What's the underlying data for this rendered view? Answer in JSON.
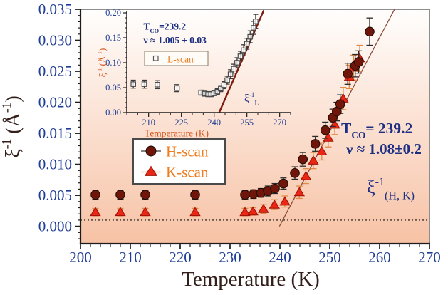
{
  "colors": {
    "page_bg": "#ffffff",
    "plot_gradient_top": "#fffefd",
    "plot_gradient_bottom": "#f7c2a5",
    "frame": "#8e8e8e",
    "axis": "#1c1c1c",
    "tick_label": "#1e3d96",
    "axis_title": "#33201a",
    "annotation": "#1d2f82",
    "legend_text": "#ee7d1f",
    "legend_border": "#4a4a4a",
    "inset_axis_title": "#d8571f",
    "h_fill": "#701509",
    "h_edge": "#1c0a04",
    "h_err": "#2b2b2b",
    "k_fill": "#ea2615",
    "k_edge": "#9c1004",
    "k_err": "#e08a45",
    "l_edge": "#4a4a4a",
    "l_err": "#3a3a3a",
    "fit_main": "#8a4a38",
    "fit_inset": "#7c1b0e",
    "dotted_line": "#111111"
  },
  "chart_data": {
    "type": "scatter",
    "title": "",
    "xlabel": "Temperature (K)",
    "ylabel": "ξ⁻¹ (Å⁻¹)",
    "ylabel_parts": [
      [
        "n",
        "ξ"
      ],
      [
        "sup",
        "-1"
      ],
      [
        "n",
        " (Å"
      ],
      [
        "sup",
        "-1"
      ],
      [
        "n",
        ")"
      ]
    ],
    "xlim": [
      200,
      270
    ],
    "ylim": [
      -0.0028,
      0.035
    ],
    "x_ticks": [
      200,
      210,
      220,
      230,
      240,
      250,
      260,
      270
    ],
    "x_tick_labels": [
      "200",
      "210",
      "220",
      "230",
      "240",
      "250",
      "260",
      "270"
    ],
    "x_minor_step": 2,
    "y_ticks": [
      0,
      0.005,
      0.01,
      0.015,
      0.02,
      0.025,
      0.03,
      0.035
    ],
    "y_tick_labels": [
      "0.000",
      "0.005",
      "0.010",
      "0.015",
      "0.020",
      "0.025",
      "0.030",
      "0.035"
    ],
    "y_minor_step": 0.001,
    "grid": false,
    "legend_position": "center-left",
    "resolution_line_y": 0.001,
    "fit_line": {
      "x": [
        239.9,
        263.0
      ],
      "y": [
        0.0,
        0.035
      ]
    },
    "series": [
      {
        "name": "H-scan",
        "marker": "circle",
        "data": [
          [
            203,
            0.0051,
            0.0007
          ],
          [
            208,
            0.0051,
            0.0007
          ],
          [
            213,
            0.0051,
            0.0007
          ],
          [
            223,
            0.0051,
            0.0007
          ],
          [
            233,
            0.0051,
            0.0007
          ],
          [
            234.7,
            0.0052,
            0.0007
          ],
          [
            236.2,
            0.0054,
            0.0007
          ],
          [
            237.6,
            0.0057,
            0.0008
          ],
          [
            239,
            0.0061,
            0.0008
          ],
          [
            240.7,
            0.0069,
            0.0009
          ],
          [
            243,
            0.0086,
            0.001
          ],
          [
            244.6,
            0.0108,
            0.0011
          ],
          [
            247.1,
            0.0133,
            0.0012
          ],
          [
            249.1,
            0.0155,
            0.0013
          ],
          [
            250.6,
            0.0175,
            0.0014
          ],
          [
            251.4,
            0.0185,
            0.0015
          ],
          [
            252.1,
            0.0197,
            0.0015
          ],
          [
            253.6,
            0.0246,
            0.0017
          ],
          [
            255.1,
            0.0259,
            0.0018
          ],
          [
            255.8,
            0.0265,
            0.0018
          ],
          [
            258,
            0.0314,
            0.0022
          ]
        ]
      },
      {
        "name": "K-scan",
        "marker": "triangle",
        "data": [
          [
            203,
            0.0023,
            0.0006
          ],
          [
            208,
            0.0023,
            0.0006
          ],
          [
            213,
            0.0023,
            0.0006
          ],
          [
            223,
            0.0023,
            0.0006
          ],
          [
            233,
            0.0023,
            0.0006
          ],
          [
            234.6,
            0.0024,
            0.0006
          ],
          [
            236.7,
            0.0028,
            0.0007
          ],
          [
            238.9,
            0.0035,
            0.0008
          ],
          [
            241,
            0.004,
            0.0009
          ],
          [
            243.9,
            0.0055,
            0.001
          ],
          [
            245.2,
            0.0081,
            0.0012
          ],
          [
            246.7,
            0.0106,
            0.0013
          ],
          [
            248.4,
            0.0121,
            0.0014
          ],
          [
            249.7,
            0.0143,
            0.0015
          ],
          [
            251,
            0.0164,
            0.0016
          ],
          [
            252.7,
            0.0206,
            0.0018
          ],
          [
            253.9,
            0.0241,
            0.0019
          ],
          [
            254.8,
            0.0256,
            0.002
          ],
          [
            256,
            0.0271,
            0.0021
          ]
        ]
      }
    ],
    "legend": {
      "items": [
        "H-scan",
        "K-scan"
      ]
    },
    "annotations": [
      {
        "id": "tco-main",
        "parts": [
          [
            "n",
            "T"
          ],
          [
            "sub",
            "CO"
          ],
          [
            "n",
            "= 239.2"
          ]
        ]
      },
      {
        "id": "nu-main",
        "parts": [
          [
            "n",
            "ν ≈ 1.08±0.2"
          ]
        ]
      },
      {
        "id": "xi-hk",
        "parts": [
          [
            "n",
            "ξ"
          ],
          [
            "sup",
            "-1"
          ],
          [
            "sub",
            "(H, K)"
          ]
        ]
      }
    ],
    "inset": {
      "type": "scatter",
      "xlabel": "Temperature (K)",
      "ylabel": "ξ⁻¹ (Å⁻¹)",
      "ylabel_parts": [
        [
          "n",
          "ξ"
        ],
        [
          "sup",
          "-1"
        ],
        [
          "n",
          " (Å"
        ],
        [
          "sup",
          "-1"
        ],
        [
          "n",
          ")"
        ]
      ],
      "xlim": [
        200,
        275
      ],
      "ylim": [
        0,
        0.2
      ],
      "x_ticks": [
        210,
        225,
        240,
        255,
        270
      ],
      "x_tick_labels": [
        "210",
        "225",
        "240",
        "255",
        "270"
      ],
      "x_minor_step": 5,
      "y_ticks": [
        0,
        0.05,
        0.1,
        0.15,
        0.2
      ],
      "y_tick_labels": [
        "0.00",
        "0.05",
        "0.10",
        "0.15",
        "0.20"
      ],
      "y_minor_step": 0.01,
      "fit_line": {
        "x": [
          242.3,
          262.7
        ],
        "y": [
          0.0,
          0.205
        ]
      },
      "series": [
        {
          "name": "L-scan",
          "marker": "open-square",
          "data": [
            [
              203,
              0.057,
              0.008
            ],
            [
              208,
              0.057,
              0.008
            ],
            [
              214,
              0.056,
              0.008
            ],
            [
              223,
              0.049,
              0.007
            ],
            [
              234,
              0.04,
              0.005
            ],
            [
              235.7,
              0.038,
              0.005
            ],
            [
              237.2,
              0.037,
              0.005
            ],
            [
              238.6,
              0.037,
              0.005
            ],
            [
              240,
              0.039,
              0.005
            ],
            [
              241.5,
              0.042,
              0.006
            ],
            [
              243,
              0.048,
              0.006
            ],
            [
              244.5,
              0.055,
              0.007
            ],
            [
              246,
              0.065,
              0.008
            ],
            [
              247.5,
              0.077,
              0.009
            ],
            [
              249,
              0.088,
              0.009
            ],
            [
              250.5,
              0.1,
              0.01
            ],
            [
              252,
              0.113,
              0.01
            ],
            [
              253.5,
              0.125,
              0.011
            ],
            [
              255,
              0.138,
              0.011
            ],
            [
              256.5,
              0.152,
              0.012
            ],
            [
              258,
              0.17,
              0.013
            ],
            [
              259,
              0.183,
              0.014
            ]
          ]
        }
      ],
      "legend": {
        "items": [
          "L-scan"
        ]
      },
      "annotations": [
        {
          "id": "tco-inset",
          "parts": [
            [
              "n",
              "T"
            ],
            [
              "sub",
              "CO"
            ],
            [
              "n",
              "=239.2"
            ]
          ]
        },
        {
          "id": "nu-inset",
          "parts": [
            [
              "n",
              "ν ≈ 1.005 ± 0.03"
            ]
          ]
        },
        {
          "id": "xi-l",
          "parts": [
            [
              "n",
              "ξ"
            ],
            [
              "sup",
              "-1"
            ],
            [
              "sub",
              "L"
            ]
          ]
        }
      ]
    }
  }
}
